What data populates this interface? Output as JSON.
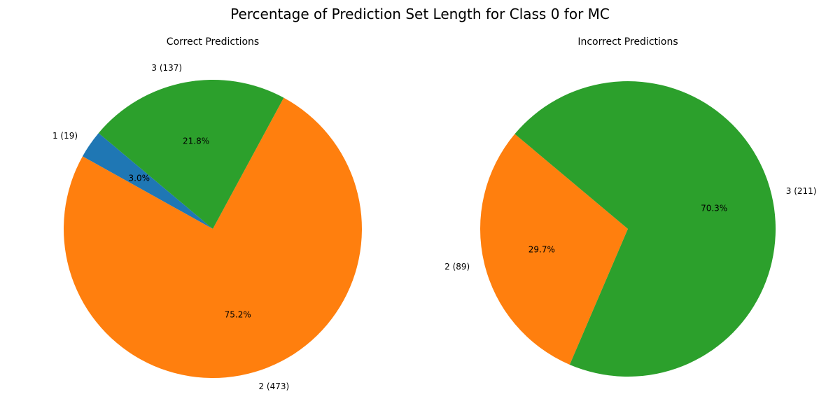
{
  "figure": {
    "title": "Percentage of Prediction Set Length for Class 0 for MC"
  },
  "colors": {
    "1": "#1f77b4",
    "2": "#ff7f0e",
    "3": "#2ca02c"
  },
  "chart_data": [
    {
      "type": "pie",
      "title": "Correct Predictions",
      "slices": [
        {
          "key": "1",
          "label": "1 (19)",
          "count": 19,
          "percent": "3.0%"
        },
        {
          "key": "2",
          "label": "2 (473)",
          "count": 473,
          "percent": "75.2%"
        },
        {
          "key": "3",
          "label": "3 (137)",
          "count": 137,
          "percent": "21.8%"
        }
      ],
      "start_angle_deg": 140,
      "direction": "counterclockwise"
    },
    {
      "type": "pie",
      "title": "Incorrect Predictions",
      "slices": [
        {
          "key": "2",
          "label": "2 (89)",
          "count": 89,
          "percent": "29.7%"
        },
        {
          "key": "3",
          "label": "3 (211)",
          "count": 211,
          "percent": "70.3%"
        }
      ],
      "start_angle_deg": 140,
      "direction": "counterclockwise"
    }
  ]
}
